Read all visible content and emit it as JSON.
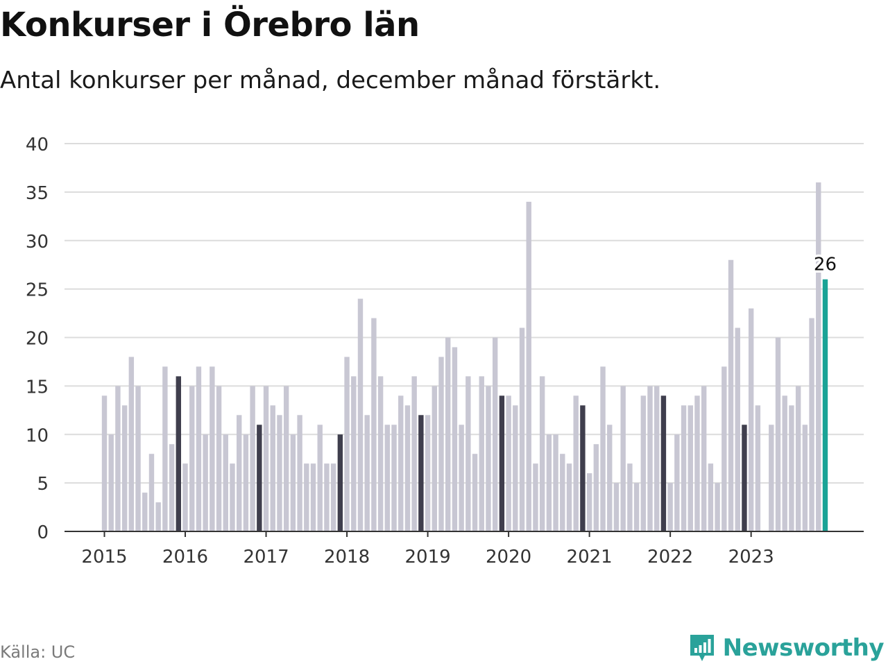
{
  "title": "Konkurser i Örebro län",
  "subtitle": "Antal konkurser per månad, december månad förstärkt.",
  "source": "Källa: UC",
  "brand": "Newsworthy",
  "colors": {
    "bar": "#c8c7d3",
    "december": "#3f3e4d",
    "highlight": "#1aa396",
    "grid": "#dcdcdc",
    "axis": "#333333",
    "brand": "#2aa29a"
  },
  "chart_data": {
    "type": "bar",
    "ylim": [
      0,
      40
    ],
    "yticks": [
      0,
      5,
      10,
      15,
      20,
      25,
      30,
      35,
      40
    ],
    "xtick_labels": [
      "2015",
      "2016",
      "2017",
      "2018",
      "2019",
      "2020",
      "2021",
      "2022",
      "2023"
    ],
    "grid": true,
    "annotation": "26",
    "x_start": "2015-01",
    "x_end": "2023-12",
    "values": [
      14,
      10,
      15,
      13,
      18,
      15,
      4,
      8,
      3,
      17,
      9,
      16,
      7,
      15,
      17,
      10,
      17,
      15,
      10,
      7,
      12,
      10,
      15,
      11,
      15,
      13,
      12,
      15,
      10,
      12,
      7,
      7,
      11,
      7,
      7,
      10,
      18,
      16,
      24,
      12,
      22,
      16,
      11,
      11,
      14,
      13,
      16,
      12,
      12,
      15,
      18,
      20,
      19,
      11,
      16,
      8,
      16,
      15,
      20,
      14,
      14,
      13,
      21,
      34,
      7,
      16,
      10,
      10,
      8,
      7,
      14,
      13,
      6,
      9,
      17,
      11,
      5,
      15,
      7,
      5,
      14,
      15,
      15,
      14,
      5,
      10,
      13,
      13,
      14,
      15,
      7,
      5,
      17,
      28,
      21,
      11,
      23,
      13,
      0,
      11,
      20,
      14,
      13,
      15,
      11,
      22,
      36,
      26
    ]
  }
}
